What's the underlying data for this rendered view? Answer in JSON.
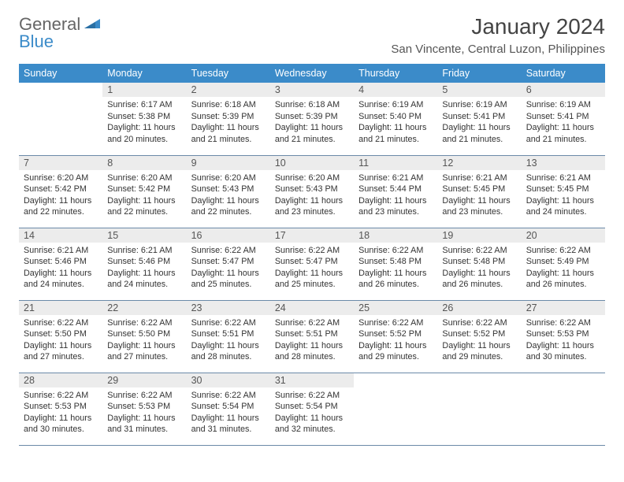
{
  "logo": {
    "text1": "General",
    "text2": "Blue"
  },
  "title": "January 2024",
  "location": "San Vincente, Central Luzon, Philippines",
  "colors": {
    "header_bg": "#3b8bc9",
    "header_text": "#ffffff",
    "daynum_bg": "#ececec",
    "border": "#6b8aa8",
    "logo_general": "#666666",
    "logo_blue": "#3b8bc9"
  },
  "fonts": {
    "title_size": 28,
    "location_size": 15,
    "dayheader_size": 12.5,
    "body_size": 10.8
  },
  "day_headers": [
    "Sunday",
    "Monday",
    "Tuesday",
    "Wednesday",
    "Thursday",
    "Friday",
    "Saturday"
  ],
  "weeks": [
    [
      {
        "num": "",
        "sunrise": "",
        "sunset": "",
        "daylight": ""
      },
      {
        "num": "1",
        "sunrise": "Sunrise: 6:17 AM",
        "sunset": "Sunset: 5:38 PM",
        "daylight": "Daylight: 11 hours and 20 minutes."
      },
      {
        "num": "2",
        "sunrise": "Sunrise: 6:18 AM",
        "sunset": "Sunset: 5:39 PM",
        "daylight": "Daylight: 11 hours and 21 minutes."
      },
      {
        "num": "3",
        "sunrise": "Sunrise: 6:18 AM",
        "sunset": "Sunset: 5:39 PM",
        "daylight": "Daylight: 11 hours and 21 minutes."
      },
      {
        "num": "4",
        "sunrise": "Sunrise: 6:19 AM",
        "sunset": "Sunset: 5:40 PM",
        "daylight": "Daylight: 11 hours and 21 minutes."
      },
      {
        "num": "5",
        "sunrise": "Sunrise: 6:19 AM",
        "sunset": "Sunset: 5:41 PM",
        "daylight": "Daylight: 11 hours and 21 minutes."
      },
      {
        "num": "6",
        "sunrise": "Sunrise: 6:19 AM",
        "sunset": "Sunset: 5:41 PM",
        "daylight": "Daylight: 11 hours and 21 minutes."
      }
    ],
    [
      {
        "num": "7",
        "sunrise": "Sunrise: 6:20 AM",
        "sunset": "Sunset: 5:42 PM",
        "daylight": "Daylight: 11 hours and 22 minutes."
      },
      {
        "num": "8",
        "sunrise": "Sunrise: 6:20 AM",
        "sunset": "Sunset: 5:42 PM",
        "daylight": "Daylight: 11 hours and 22 minutes."
      },
      {
        "num": "9",
        "sunrise": "Sunrise: 6:20 AM",
        "sunset": "Sunset: 5:43 PM",
        "daylight": "Daylight: 11 hours and 22 minutes."
      },
      {
        "num": "10",
        "sunrise": "Sunrise: 6:20 AM",
        "sunset": "Sunset: 5:43 PM",
        "daylight": "Daylight: 11 hours and 23 minutes."
      },
      {
        "num": "11",
        "sunrise": "Sunrise: 6:21 AM",
        "sunset": "Sunset: 5:44 PM",
        "daylight": "Daylight: 11 hours and 23 minutes."
      },
      {
        "num": "12",
        "sunrise": "Sunrise: 6:21 AM",
        "sunset": "Sunset: 5:45 PM",
        "daylight": "Daylight: 11 hours and 23 minutes."
      },
      {
        "num": "13",
        "sunrise": "Sunrise: 6:21 AM",
        "sunset": "Sunset: 5:45 PM",
        "daylight": "Daylight: 11 hours and 24 minutes."
      }
    ],
    [
      {
        "num": "14",
        "sunrise": "Sunrise: 6:21 AM",
        "sunset": "Sunset: 5:46 PM",
        "daylight": "Daylight: 11 hours and 24 minutes."
      },
      {
        "num": "15",
        "sunrise": "Sunrise: 6:21 AM",
        "sunset": "Sunset: 5:46 PM",
        "daylight": "Daylight: 11 hours and 24 minutes."
      },
      {
        "num": "16",
        "sunrise": "Sunrise: 6:22 AM",
        "sunset": "Sunset: 5:47 PM",
        "daylight": "Daylight: 11 hours and 25 minutes."
      },
      {
        "num": "17",
        "sunrise": "Sunrise: 6:22 AM",
        "sunset": "Sunset: 5:47 PM",
        "daylight": "Daylight: 11 hours and 25 minutes."
      },
      {
        "num": "18",
        "sunrise": "Sunrise: 6:22 AM",
        "sunset": "Sunset: 5:48 PM",
        "daylight": "Daylight: 11 hours and 26 minutes."
      },
      {
        "num": "19",
        "sunrise": "Sunrise: 6:22 AM",
        "sunset": "Sunset: 5:48 PM",
        "daylight": "Daylight: 11 hours and 26 minutes."
      },
      {
        "num": "20",
        "sunrise": "Sunrise: 6:22 AM",
        "sunset": "Sunset: 5:49 PM",
        "daylight": "Daylight: 11 hours and 26 minutes."
      }
    ],
    [
      {
        "num": "21",
        "sunrise": "Sunrise: 6:22 AM",
        "sunset": "Sunset: 5:50 PM",
        "daylight": "Daylight: 11 hours and 27 minutes."
      },
      {
        "num": "22",
        "sunrise": "Sunrise: 6:22 AM",
        "sunset": "Sunset: 5:50 PM",
        "daylight": "Daylight: 11 hours and 27 minutes."
      },
      {
        "num": "23",
        "sunrise": "Sunrise: 6:22 AM",
        "sunset": "Sunset: 5:51 PM",
        "daylight": "Daylight: 11 hours and 28 minutes."
      },
      {
        "num": "24",
        "sunrise": "Sunrise: 6:22 AM",
        "sunset": "Sunset: 5:51 PM",
        "daylight": "Daylight: 11 hours and 28 minutes."
      },
      {
        "num": "25",
        "sunrise": "Sunrise: 6:22 AM",
        "sunset": "Sunset: 5:52 PM",
        "daylight": "Daylight: 11 hours and 29 minutes."
      },
      {
        "num": "26",
        "sunrise": "Sunrise: 6:22 AM",
        "sunset": "Sunset: 5:52 PM",
        "daylight": "Daylight: 11 hours and 29 minutes."
      },
      {
        "num": "27",
        "sunrise": "Sunrise: 6:22 AM",
        "sunset": "Sunset: 5:53 PM",
        "daylight": "Daylight: 11 hours and 30 minutes."
      }
    ],
    [
      {
        "num": "28",
        "sunrise": "Sunrise: 6:22 AM",
        "sunset": "Sunset: 5:53 PM",
        "daylight": "Daylight: 11 hours and 30 minutes."
      },
      {
        "num": "29",
        "sunrise": "Sunrise: 6:22 AM",
        "sunset": "Sunset: 5:53 PM",
        "daylight": "Daylight: 11 hours and 31 minutes."
      },
      {
        "num": "30",
        "sunrise": "Sunrise: 6:22 AM",
        "sunset": "Sunset: 5:54 PM",
        "daylight": "Daylight: 11 hours and 31 minutes."
      },
      {
        "num": "31",
        "sunrise": "Sunrise: 6:22 AM",
        "sunset": "Sunset: 5:54 PM",
        "daylight": "Daylight: 11 hours and 32 minutes."
      },
      {
        "num": "",
        "sunrise": "",
        "sunset": "",
        "daylight": ""
      },
      {
        "num": "",
        "sunrise": "",
        "sunset": "",
        "daylight": ""
      },
      {
        "num": "",
        "sunrise": "",
        "sunset": "",
        "daylight": ""
      }
    ]
  ]
}
